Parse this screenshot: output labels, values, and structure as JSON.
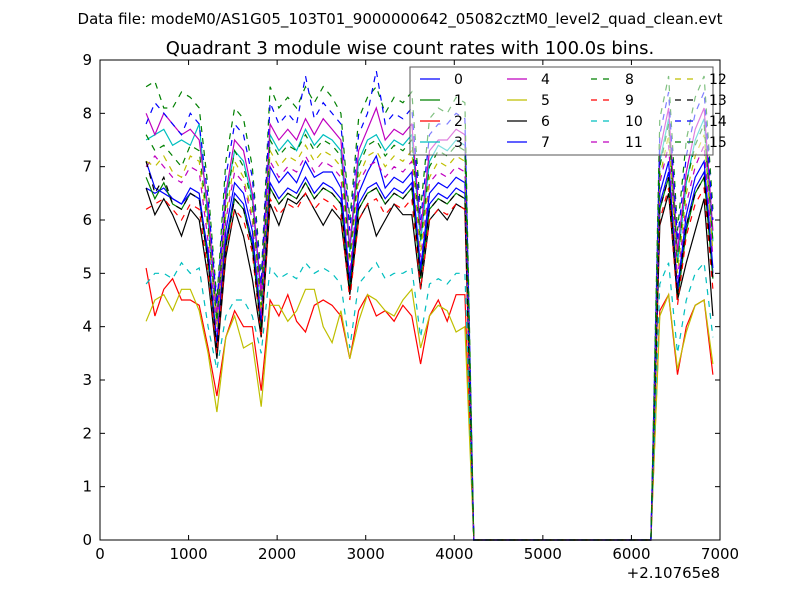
{
  "chart_data": {
    "type": "line",
    "suptitle": "Data file: modeM0/AS1G05_103T01_9000000642_05082cztM0_level2_quad_clean.evt",
    "title": "Quadrant 3 module wise count rates with 100.0s bins.",
    "xlabel": "",
    "ylabel": "",
    "x_offset_label": "+2.10765e8",
    "xlim": [
      0,
      7000
    ],
    "ylim": [
      0,
      9
    ],
    "xticks": [
      0,
      1000,
      2000,
      3000,
      4000,
      5000,
      6000,
      7000
    ],
    "yticks": [
      0,
      1,
      2,
      3,
      4,
      5,
      6,
      7,
      8,
      9
    ],
    "grid": false,
    "legend_position": "top-right",
    "legend_columns": 4,
    "x": [
      520,
      620,
      720,
      820,
      920,
      1020,
      1120,
      1220,
      1320,
      1420,
      1520,
      1620,
      1720,
      1820,
      1920,
      2020,
      2120,
      2220,
      2320,
      2420,
      2520,
      2620,
      2720,
      2820,
      2920,
      3020,
      3120,
      3220,
      3320,
      3420,
      3520,
      3620,
      3720,
      3820,
      3920,
      4020,
      4120,
      4220,
      6220,
      6320,
      6420,
      6520,
      6620,
      6720,
      6820,
      6920
    ],
    "series": [
      {
        "name": "0",
        "color": "#0000ff",
        "style": "solid",
        "values": [
          6.6,
          6.5,
          6.6,
          6.4,
          6.3,
          6.6,
          6.5,
          5.3,
          3.6,
          5.6,
          6.5,
          6.3,
          5.6,
          4.0,
          6.7,
          6.4,
          6.6,
          6.5,
          6.8,
          6.5,
          6.7,
          6.6,
          6.4,
          4.8,
          6.3,
          6.6,
          6.7,
          6.4,
          6.6,
          6.5,
          6.7,
          5.0,
          6.3,
          6.5,
          6.4,
          6.6,
          6.5,
          0,
          0,
          6.3,
          6.9,
          4.6,
          5.9,
          6.6,
          6.9,
          5.0
        ]
      },
      {
        "name": "1",
        "color": "#008000",
        "style": "solid",
        "values": [
          6.8,
          6.4,
          6.7,
          6.3,
          6.2,
          6.5,
          6.4,
          5.2,
          3.6,
          5.5,
          6.4,
          6.2,
          5.5,
          3.9,
          6.6,
          6.3,
          6.5,
          6.4,
          6.7,
          6.4,
          6.6,
          6.5,
          6.3,
          4.7,
          6.2,
          6.5,
          6.6,
          6.3,
          6.5,
          6.4,
          6.6,
          4.9,
          6.2,
          6.4,
          6.3,
          6.5,
          6.4,
          0,
          0,
          6.2,
          6.8,
          4.5,
          5.8,
          6.5,
          6.8,
          4.9
        ]
      },
      {
        "name": "2",
        "color": "#ff0000",
        "style": "solid",
        "values": [
          5.1,
          4.2,
          4.7,
          4.9,
          4.5,
          4.5,
          4.4,
          3.6,
          2.7,
          3.8,
          4.3,
          4.0,
          4.0,
          2.8,
          4.5,
          4.2,
          4.6,
          4.1,
          3.9,
          4.4,
          4.5,
          4.4,
          4.2,
          3.4,
          4.3,
          4.6,
          4.2,
          4.3,
          4.1,
          4.4,
          4.2,
          3.3,
          4.2,
          4.5,
          4.1,
          4.6,
          4.6,
          0,
          0,
          4.3,
          4.6,
          3.1,
          4.0,
          4.4,
          4.5,
          3.1
        ]
      },
      {
        "name": "3",
        "color": "#00bfbf",
        "style": "solid",
        "values": [
          7.5,
          7.6,
          7.7,
          7.4,
          7.5,
          7.4,
          7.8,
          6.0,
          4.1,
          6.4,
          7.3,
          7.1,
          6.4,
          4.5,
          7.6,
          7.3,
          7.5,
          7.3,
          7.7,
          7.4,
          7.6,
          7.5,
          7.3,
          5.4,
          7.1,
          7.5,
          7.6,
          7.3,
          7.5,
          7.4,
          7.6,
          5.6,
          7.1,
          7.4,
          7.3,
          7.5,
          7.4,
          0,
          0,
          7.1,
          7.9,
          5.2,
          6.7,
          7.5,
          7.9,
          5.6
        ]
      },
      {
        "name": "4",
        "color": "#bf00bf",
        "style": "solid",
        "values": [
          8.0,
          7.6,
          8.0,
          7.8,
          7.6,
          7.7,
          7.5,
          6.2,
          4.2,
          6.5,
          7.5,
          7.3,
          6.5,
          4.6,
          7.8,
          7.5,
          7.7,
          7.5,
          7.9,
          7.6,
          7.9,
          7.7,
          7.5,
          5.5,
          7.3,
          7.7,
          8.1,
          7.5,
          7.7,
          7.6,
          7.8,
          5.8,
          7.3,
          7.5,
          7.5,
          7.7,
          7.6,
          0,
          0,
          7.3,
          8.1,
          5.4,
          6.9,
          7.7,
          8.1,
          5.8
        ]
      },
      {
        "name": "5",
        "color": "#bfbf00",
        "style": "solid",
        "values": [
          4.1,
          4.5,
          4.6,
          4.3,
          4.7,
          4.7,
          4.3,
          3.5,
          2.4,
          3.8,
          4.2,
          3.6,
          3.7,
          2.5,
          4.4,
          4.4,
          4.1,
          4.3,
          4.7,
          4.7,
          4.0,
          3.7,
          4.3,
          3.4,
          4.1,
          4.6,
          4.5,
          4.3,
          4.2,
          4.5,
          4.7,
          3.6,
          4.2,
          4.4,
          4.3,
          3.9,
          4.0,
          0,
          0,
          4.2,
          4.6,
          3.2,
          3.9,
          4.4,
          4.5,
          3.3
        ]
      },
      {
        "name": "6",
        "color": "#000000",
        "style": "solid",
        "values": [
          6.6,
          6.1,
          6.4,
          6.1,
          5.7,
          6.2,
          6.0,
          4.9,
          3.4,
          5.3,
          6.2,
          5.7,
          4.9,
          3.8,
          6.3,
          5.9,
          6.4,
          6.3,
          6.5,
          6.2,
          5.9,
          6.2,
          6.0,
          4.6,
          6.0,
          6.3,
          5.7,
          6.0,
          6.3,
          6.1,
          6.1,
          4.7,
          6.0,
          6.2,
          6.0,
          6.3,
          6.2,
          0,
          0,
          5.9,
          6.5,
          4.5,
          5.2,
          5.8,
          6.4,
          4.2
        ]
      },
      {
        "name": "7",
        "color": "#0000ff",
        "style": "solid",
        "values": [
          7.1,
          6.6,
          6.5,
          6.4,
          6.3,
          6.5,
          6.4,
          5.4,
          3.7,
          5.8,
          6.7,
          6.5,
          5.8,
          4.1,
          7.0,
          6.7,
          6.9,
          6.7,
          7.1,
          6.8,
          6.9,
          6.9,
          6.6,
          4.9,
          6.5,
          6.9,
          7.2,
          6.6,
          6.8,
          6.7,
          6.9,
          5.1,
          6.5,
          6.7,
          6.6,
          6.8,
          6.7,
          0,
          0,
          6.5,
          7.1,
          4.7,
          6.1,
          6.8,
          7.1,
          5.1
        ]
      },
      {
        "name": "8",
        "color": "#008000",
        "style": "dashed",
        "values": [
          8.5,
          8.6,
          8.1,
          8.1,
          8.4,
          8.3,
          8.1,
          6.6,
          4.5,
          7.1,
          8.1,
          7.9,
          7.0,
          4.9,
          8.5,
          8.1,
          8.3,
          8.1,
          8.5,
          8.2,
          8.5,
          8.3,
          8.0,
          6.0,
          7.9,
          8.3,
          8.5,
          8.0,
          8.3,
          8.2,
          8.4,
          6.2,
          7.9,
          8.1,
          8.0,
          8.3,
          8.2,
          0,
          0,
          7.9,
          8.7,
          5.8,
          7.5,
          8.3,
          8.7,
          6.2
        ]
      },
      {
        "name": "9",
        "color": "#ff0000",
        "style": "dashed",
        "values": [
          6.2,
          6.3,
          6.4,
          6.2,
          6.0,
          6.3,
          6.2,
          5.0,
          3.5,
          5.4,
          6.2,
          6.0,
          5.4,
          3.8,
          6.4,
          6.1,
          6.3,
          6.2,
          6.5,
          6.2,
          6.4,
          6.3,
          6.1,
          4.5,
          6.0,
          6.3,
          6.4,
          6.1,
          6.3,
          6.2,
          6.4,
          4.7,
          6.0,
          6.2,
          6.1,
          6.3,
          6.2,
          0,
          0,
          6.0,
          6.6,
          4.4,
          5.7,
          6.3,
          6.6,
          4.7
        ]
      },
      {
        "name": "10",
        "color": "#00bfbf",
        "style": "dashed",
        "values": [
          4.8,
          5.0,
          5.0,
          4.9,
          5.2,
          5.0,
          5.1,
          4.0,
          3.2,
          4.2,
          4.5,
          4.5,
          4.2,
          3.5,
          5.1,
          4.9,
          5.0,
          4.9,
          5.2,
          5.0,
          5.1,
          5.0,
          4.8,
          3.6,
          4.8,
          5.0,
          5.2,
          4.9,
          5.0,
          5.0,
          5.1,
          3.8,
          4.8,
          4.9,
          4.8,
          5.0,
          5.0,
          0,
          0,
          4.8,
          5.2,
          3.5,
          4.5,
          5.0,
          5.2,
          3.8
        ]
      },
      {
        "name": "11",
        "color": "#bf00bf",
        "style": "dashed",
        "values": [
          7.0,
          7.2,
          7.0,
          6.8,
          6.7,
          7.0,
          6.9,
          5.6,
          3.9,
          6.0,
          6.9,
          6.7,
          6.0,
          4.2,
          7.1,
          6.8,
          7.0,
          6.9,
          7.2,
          6.9,
          7.1,
          7.0,
          6.8,
          5.0,
          6.7,
          7.0,
          7.1,
          6.8,
          7.0,
          6.9,
          7.1,
          5.3,
          6.7,
          6.9,
          6.8,
          7.0,
          6.9,
          0,
          0,
          6.7,
          7.4,
          4.9,
          6.3,
          7.0,
          7.4,
          5.3
        ]
      },
      {
        "name": "12",
        "color": "#bfbf00",
        "style": "dashed",
        "values": [
          7.1,
          7.0,
          7.2,
          6.9,
          6.8,
          7.2,
          7.1,
          5.8,
          4.0,
          6.1,
          7.1,
          6.8,
          6.1,
          4.3,
          7.3,
          7.0,
          7.2,
          7.1,
          7.4,
          7.1,
          7.3,
          7.2,
          7.0,
          5.2,
          6.8,
          7.2,
          7.3,
          7.0,
          7.2,
          7.1,
          7.3,
          5.4,
          6.8,
          7.1,
          7.0,
          7.2,
          7.1,
          0,
          0,
          6.8,
          7.6,
          5.0,
          6.5,
          7.2,
          7.6,
          5.4
        ]
      },
      {
        "name": "13",
        "color": "#000000",
        "style": "dashed",
        "values": [
          7.1,
          6.5,
          6.8,
          6.3,
          6.2,
          6.5,
          6.4,
          5.2,
          3.6,
          5.5,
          6.4,
          6.2,
          5.5,
          3.9,
          6.6,
          6.3,
          6.5,
          6.4,
          6.7,
          6.4,
          6.6,
          6.5,
          6.3,
          4.7,
          6.2,
          6.5,
          6.6,
          6.3,
          6.5,
          6.4,
          6.6,
          4.9,
          6.2,
          6.4,
          6.3,
          6.5,
          6.4,
          0,
          0,
          6.2,
          6.8,
          4.6,
          5.9,
          6.5,
          6.8,
          4.9
        ]
      },
      {
        "name": "14",
        "color": "#0000ff",
        "style": "dashed",
        "values": [
          7.8,
          8.2,
          8.0,
          7.8,
          7.6,
          8.0,
          7.8,
          6.4,
          4.4,
          6.8,
          7.8,
          7.6,
          6.8,
          4.8,
          8.2,
          7.8,
          8.0,
          7.8,
          8.7,
          7.9,
          8.2,
          8.0,
          7.8,
          5.8,
          7.6,
          8.0,
          8.8,
          7.8,
          8.0,
          7.9,
          8.1,
          6.0,
          7.6,
          7.8,
          7.8,
          8.0,
          7.9,
          0,
          0,
          7.6,
          8.4,
          5.6,
          7.2,
          8.0,
          8.4,
          6.0
        ]
      },
      {
        "name": "15",
        "color": "#008000",
        "style": "dashed",
        "values": [
          7.6,
          7.3,
          7.4,
          7.2,
          7.0,
          7.4,
          7.3,
          5.9,
          4.1,
          6.3,
          7.3,
          7.0,
          6.3,
          4.4,
          7.5,
          7.2,
          7.4,
          7.3,
          7.6,
          7.3,
          7.5,
          7.4,
          7.2,
          5.3,
          7.0,
          7.4,
          7.5,
          7.2,
          7.4,
          7.3,
          7.5,
          5.6,
          7.0,
          7.3,
          7.2,
          7.4,
          7.3,
          0,
          0,
          7.0,
          7.8,
          5.2,
          6.7,
          7.4,
          7.8,
          5.6
        ]
      }
    ]
  }
}
